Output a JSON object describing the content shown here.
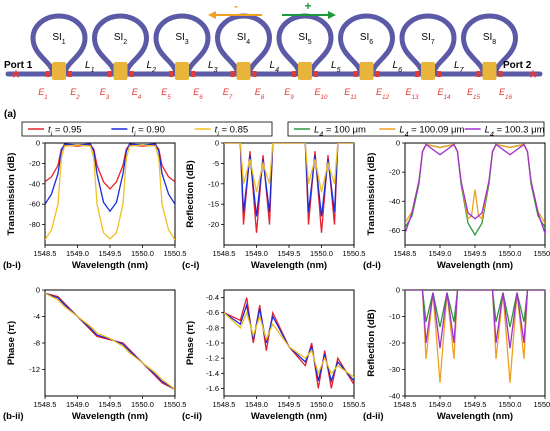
{
  "figure": {
    "panel_labels": {
      "a": "(a)",
      "bi": "(b-i)",
      "bii": "(b-ii)",
      "ci": "(c-i)",
      "cii": "(c-ii)",
      "di": "(d-i)",
      "dii": "(d-ii)"
    },
    "colors": {
      "waveguide": "#5a5aa6",
      "coupler": "#e8b43a",
      "port_marker": "#e53935",
      "arrow_minus": "#f0a020",
      "arrow_plus": "#1a9a3a",
      "t095": "#e8202a",
      "t090": "#1a2bd8",
      "t085": "#f0c020",
      "L100": "#2e9a3a",
      "L10009": "#f0a020",
      "L1003": "#a030d0"
    }
  },
  "schematic": {
    "rings": [
      "SI1",
      "SI2",
      "SI3",
      "SI4",
      "SI5",
      "SI6",
      "SI7",
      "SI8"
    ],
    "ring_base": "SI",
    "ring_subs": [
      "1",
      "2",
      "3",
      "4",
      "5",
      "6",
      "7",
      "8"
    ],
    "L_base": "L",
    "L_subs": [
      "1",
      "2",
      "3",
      "4",
      "5",
      "6",
      "7"
    ],
    "E_base": "E",
    "E_subs": [
      "1",
      "2",
      "3",
      "4",
      "5",
      "6",
      "7",
      "8",
      "9",
      "10",
      "11",
      "12",
      "13",
      "14",
      "15",
      "16"
    ],
    "port1": "Port 1",
    "port2": "Port 2",
    "minus": "-",
    "plus": "+"
  },
  "legends": {
    "left": [
      {
        "var": "t",
        "sub": "i",
        "value": " = 0.95",
        "color": "#e8202a"
      },
      {
        "var": "t",
        "sub": "i",
        "value": " = 0.90",
        "color": "#1a2bd8"
      },
      {
        "var": "t",
        "sub": "i",
        "value": " = 0.85",
        "color": "#f0c020"
      }
    ],
    "right": [
      {
        "var": "L",
        "sub": "4",
        "value": " = 100 μm",
        "color": "#2e9a3a"
      },
      {
        "var": "L",
        "sub": "4",
        "value": " = 100.09 μm",
        "color": "#f0a020"
      },
      {
        "var": "L",
        "sub": "4",
        "value": " = 100.3 μm",
        "color": "#a030d0"
      }
    ]
  },
  "chart_data": [
    {
      "id": "b-i",
      "type": "line",
      "ylabel": "Transmission (dB)",
      "xlabel": "Wavelength (nm)",
      "xlim": [
        1548.5,
        1550.5
      ],
      "ylim": [
        -100,
        0
      ],
      "xticks": [
        "1548.5",
        "1549.0",
        "1549.5",
        "1550.0",
        "1550.5"
      ],
      "yticks": [
        "0",
        "-20",
        "-40",
        "-60",
        "-80"
      ],
      "series": [
        {
          "name": "t_i = 0.95",
          "color": "#e8202a",
          "x": [
            1548.5,
            1548.6,
            1548.7,
            1548.75,
            1548.8,
            1549.0,
            1549.2,
            1549.25,
            1549.3,
            1549.4,
            1549.5,
            1549.6,
            1549.7,
            1549.75,
            1549.8,
            1550.0,
            1550.2,
            1550.25,
            1550.3,
            1550.4,
            1550.5
          ],
          "y": [
            -38,
            -33,
            -22,
            -6,
            -2,
            -3,
            -2,
            -6,
            -22,
            -38,
            -45,
            -38,
            -22,
            -6,
            -2,
            -3,
            -2,
            -6,
            -22,
            -33,
            -38
          ]
        },
        {
          "name": "t_i = 0.90",
          "color": "#1a2bd8",
          "x": [
            1548.5,
            1548.6,
            1548.7,
            1548.75,
            1548.8,
            1549.0,
            1549.2,
            1549.25,
            1549.3,
            1549.4,
            1549.5,
            1549.6,
            1549.7,
            1549.75,
            1549.8,
            1550.0,
            1550.2,
            1550.25,
            1550.3,
            1550.4,
            1550.5
          ],
          "y": [
            -60,
            -50,
            -30,
            -8,
            -1,
            -2,
            -1,
            -8,
            -30,
            -58,
            -67,
            -58,
            -30,
            -8,
            -1,
            -2,
            -1,
            -8,
            -30,
            -50,
            -60
          ]
        },
        {
          "name": "t_i = 0.85",
          "color": "#f0c020",
          "x": [
            1548.5,
            1548.6,
            1548.7,
            1548.75,
            1548.8,
            1549.0,
            1549.2,
            1549.25,
            1549.3,
            1549.4,
            1549.5,
            1549.6,
            1549.7,
            1549.75,
            1549.8,
            1550.0,
            1550.2,
            1550.25,
            1550.3,
            1550.4,
            1550.5
          ],
          "y": [
            -95,
            -85,
            -60,
            -15,
            -3,
            -2,
            -3,
            -15,
            -60,
            -88,
            -94,
            -88,
            -60,
            -15,
            -3,
            -2,
            -3,
            -15,
            -60,
            -85,
            -95
          ]
        }
      ]
    },
    {
      "id": "c-i",
      "type": "line",
      "ylabel": "Reflection (dB)",
      "xlabel": "Wavelength (nm)",
      "xlim": [
        1548.5,
        1550.5
      ],
      "ylim": [
        -25,
        0
      ],
      "xticks": [
        "1548.5",
        "1549.0",
        "1549.5",
        "1550.0",
        "1550.5"
      ],
      "yticks": [
        "0",
        "-5",
        "-10",
        "-15",
        "-20"
      ],
      "series": [
        {
          "name": "t_i = 0.95",
          "color": "#e8202a",
          "x": [
            1548.5,
            1548.75,
            1548.8,
            1548.9,
            1549.0,
            1549.1,
            1549.2,
            1549.25,
            1549.5,
            1549.75,
            1549.8,
            1549.9,
            1550.0,
            1550.1,
            1550.2,
            1550.25,
            1550.5
          ],
          "y": [
            0,
            0,
            -20,
            -2,
            -22,
            -3,
            -20,
            0,
            0,
            0,
            -20,
            -2,
            -22,
            -3,
            -20,
            0,
            0
          ]
        },
        {
          "name": "t_i = 0.90",
          "color": "#1a2bd8",
          "x": [
            1548.5,
            1548.75,
            1548.8,
            1548.9,
            1549.0,
            1549.1,
            1549.2,
            1549.25,
            1549.5,
            1549.75,
            1549.8,
            1549.9,
            1550.0,
            1550.1,
            1550.2,
            1550.25,
            1550.5
          ],
          "y": [
            0,
            0,
            -17,
            -3,
            -18,
            -4,
            -17,
            0,
            0,
            0,
            -17,
            -3,
            -18,
            -4,
            -17,
            0,
            0
          ]
        },
        {
          "name": "t_i = 0.85",
          "color": "#f0c020",
          "x": [
            1548.5,
            1548.75,
            1548.8,
            1548.9,
            1549.0,
            1549.1,
            1549.2,
            1549.25,
            1549.5,
            1549.75,
            1549.8,
            1549.9,
            1550.0,
            1550.1,
            1550.2,
            1550.25,
            1550.5
          ],
          "y": [
            0,
            0,
            -10,
            -4,
            -12,
            -5,
            -10,
            0,
            0,
            0,
            -10,
            -4,
            -12,
            -5,
            -10,
            0,
            0
          ]
        }
      ]
    },
    {
      "id": "d-i",
      "type": "line",
      "ylabel": "Transmission (dB)",
      "xlabel": "Wavelength (nm)",
      "xlim": [
        1548.5,
        1550.5
      ],
      "ylim": [
        -70,
        0
      ],
      "xticks": [
        "1548.5",
        "1549.0",
        "1549.5",
        "1550.0",
        "1550.5"
      ],
      "yticks": [
        "0",
        "-20",
        "-40",
        "-60"
      ],
      "series": [
        {
          "name": "L_4 = 100 μm",
          "color": "#2e9a3a",
          "x": [
            1548.5,
            1548.6,
            1548.7,
            1548.75,
            1548.8,
            1549.0,
            1549.2,
            1549.25,
            1549.3,
            1549.4,
            1549.5,
            1549.6,
            1549.7,
            1549.75,
            1549.8,
            1550.0,
            1550.2,
            1550.25,
            1550.3,
            1550.4,
            1550.5
          ],
          "y": [
            -58,
            -50,
            -28,
            -6,
            -1,
            -3,
            -1,
            -6,
            -28,
            -55,
            -63,
            -55,
            -28,
            -6,
            -1,
            -3,
            -1,
            -6,
            -28,
            -50,
            -58
          ]
        },
        {
          "name": "L_4 = 100.09 μm",
          "color": "#f0a020",
          "x": [
            1548.5,
            1548.6,
            1548.7,
            1548.75,
            1548.8,
            1549.0,
            1549.2,
            1549.25,
            1549.3,
            1549.4,
            1549.45,
            1549.5,
            1549.55,
            1549.6,
            1549.7,
            1549.75,
            1549.8,
            1550.0,
            1550.2,
            1550.25,
            1550.3,
            1550.4,
            1550.5
          ],
          "y": [
            -55,
            -47,
            -26,
            -6,
            -1,
            -3,
            -1,
            -6,
            -26,
            -52,
            -50,
            -32,
            -50,
            -52,
            -26,
            -6,
            -1,
            -3,
            -1,
            -6,
            -26,
            -47,
            -55
          ]
        },
        {
          "name": "L_4 = 100.3 μm",
          "color": "#a030d0",
          "x": [
            1548.5,
            1548.6,
            1548.7,
            1548.75,
            1548.8,
            1549.0,
            1549.2,
            1549.25,
            1549.3,
            1549.4,
            1549.5,
            1549.6,
            1549.7,
            1549.75,
            1549.8,
            1550.0,
            1550.2,
            1550.25,
            1550.3,
            1550.4,
            1550.5
          ],
          "y": [
            -62,
            -48,
            -26,
            -6,
            -1,
            -8,
            -1,
            -6,
            -26,
            -48,
            -52,
            -48,
            -26,
            -6,
            -1,
            -8,
            -1,
            -6,
            -26,
            -48,
            -62
          ]
        }
      ]
    },
    {
      "id": "b-ii",
      "type": "line",
      "ylabel": "Phase (π)",
      "xlabel": "Wavelength (nm)",
      "xlim": [
        1548.5,
        1550.5
      ],
      "ylim": [
        -16,
        0
      ],
      "xticks": [
        "1548.5",
        "1549.0",
        "1549.5",
        "1550.0",
        "1550.5"
      ],
      "yticks": [
        "0",
        "-4",
        "-8",
        "-12"
      ],
      "series": [
        {
          "name": "t_i = 0.95",
          "color": "#e8202a",
          "x": [
            1548.5,
            1548.7,
            1548.8,
            1549.0,
            1549.2,
            1549.3,
            1549.5,
            1549.7,
            1549.8,
            1550.0,
            1550.2,
            1550.3,
            1550.5
          ],
          "y": [
            -0.5,
            -1,
            -2,
            -4,
            -6,
            -7,
            -7.5,
            -8,
            -9,
            -11,
            -13,
            -14,
            -15
          ]
        },
        {
          "name": "t_i = 0.90",
          "color": "#1a2bd8",
          "x": [
            1548.5,
            1548.7,
            1548.8,
            1549.0,
            1549.2,
            1549.3,
            1549.5,
            1549.7,
            1549.8,
            1550.0,
            1550.2,
            1550.3,
            1550.5
          ],
          "y": [
            -0.5,
            -1.2,
            -2.2,
            -4,
            -5.8,
            -6.8,
            -7.4,
            -8.2,
            -9.2,
            -11,
            -12.8,
            -13.8,
            -15
          ]
        },
        {
          "name": "t_i = 0.85",
          "color": "#f0c020",
          "x": [
            1548.5,
            1548.7,
            1548.8,
            1549.0,
            1549.2,
            1549.3,
            1549.5,
            1549.7,
            1549.8,
            1550.0,
            1550.2,
            1550.3,
            1550.5
          ],
          "y": [
            -0.5,
            -1.5,
            -2.5,
            -4,
            -5.5,
            -6.5,
            -7.3,
            -8.5,
            -9.5,
            -11,
            -12.5,
            -13.5,
            -15
          ]
        }
      ]
    },
    {
      "id": "c-ii",
      "type": "line",
      "ylabel": "Phase (π)",
      "xlabel": "Wavelength (nm)",
      "xlim": [
        1548.5,
        1550.5
      ],
      "ylim": [
        -1.7,
        -0.3
      ],
      "xticks": [
        "1548.5",
        "1549.0",
        "1549.5",
        "1550.0",
        "1550.5"
      ],
      "yticks": [
        "-0.4",
        "-0.6",
        "-0.8",
        "-1.0",
        "-1.2",
        "-1.4",
        "-1.6"
      ],
      "series": [
        {
          "name": "t_i = 0.95",
          "color": "#e8202a",
          "x": [
            1548.5,
            1548.75,
            1548.85,
            1548.95,
            1549.05,
            1549.15,
            1549.25,
            1549.5,
            1549.75,
            1549.85,
            1549.95,
            1550.05,
            1550.15,
            1550.25,
            1550.5
          ],
          "y": [
            -0.6,
            -0.7,
            -0.4,
            -1.0,
            -0.5,
            -1.1,
            -0.6,
            -1.05,
            -1.3,
            -1.0,
            -1.6,
            -1.1,
            -1.6,
            -1.2,
            -1.55
          ]
        },
        {
          "name": "t_i = 0.90",
          "color": "#1a2bd8",
          "x": [
            1548.5,
            1548.75,
            1548.85,
            1548.95,
            1549.05,
            1549.15,
            1549.25,
            1549.5,
            1549.75,
            1549.85,
            1549.95,
            1550.05,
            1550.15,
            1550.25,
            1550.5
          ],
          "y": [
            -0.6,
            -0.75,
            -0.5,
            -0.95,
            -0.55,
            -1.0,
            -0.65,
            -1.05,
            -1.25,
            -1.05,
            -1.5,
            -1.15,
            -1.5,
            -1.25,
            -1.5
          ]
        },
        {
          "name": "t_i = 0.85",
          "color": "#f0c020",
          "x": [
            1548.5,
            1548.75,
            1548.85,
            1548.95,
            1549.05,
            1549.15,
            1549.25,
            1549.5,
            1549.75,
            1549.85,
            1549.95,
            1550.05,
            1550.15,
            1550.25,
            1550.5
          ],
          "y": [
            -0.6,
            -0.8,
            -0.6,
            -0.9,
            -0.65,
            -0.95,
            -0.75,
            -1.05,
            -1.2,
            -1.1,
            -1.4,
            -1.2,
            -1.4,
            -1.3,
            -1.45
          ]
        }
      ]
    },
    {
      "id": "d-ii",
      "type": "line",
      "ylabel": "Reflection (dB)",
      "xlabel": "Wavelength (nm)",
      "xlim": [
        1548.5,
        1550.5
      ],
      "ylim": [
        -40,
        0
      ],
      "xticks": [
        "1548.5",
        "1549.0",
        "1549.5",
        "1550.0",
        "1550.5"
      ],
      "yticks": [
        "0",
        "-10",
        "-20",
        "-30",
        "-40"
      ],
      "series": [
        {
          "name": "L_4 = 100 μm",
          "color": "#2e9a3a",
          "x": [
            1548.5,
            1548.75,
            1548.8,
            1548.9,
            1549.0,
            1549.1,
            1549.2,
            1549.25,
            1549.5,
            1549.75,
            1549.8,
            1549.9,
            1550.0,
            1550.1,
            1550.2,
            1550.25,
            1550.5
          ],
          "y": [
            0,
            0,
            -12,
            -1,
            -14,
            -1,
            -12,
            0,
            0,
            0,
            -12,
            -1,
            -14,
            -1,
            -12,
            0,
            0
          ]
        },
        {
          "name": "L_4 = 100.09 μm",
          "color": "#f0a020",
          "x": [
            1548.5,
            1548.75,
            1548.8,
            1548.9,
            1549.0,
            1549.1,
            1549.2,
            1549.25,
            1549.5,
            1549.75,
            1549.8,
            1549.9,
            1550.0,
            1550.1,
            1550.2,
            1550.25,
            1550.5
          ],
          "y": [
            0,
            0,
            -26,
            -1,
            -35,
            -1,
            -26,
            0,
            0,
            0,
            -26,
            -1,
            -35,
            -1,
            -26,
            0,
            0
          ]
        },
        {
          "name": "L_4 = 100.3 μm",
          "color": "#a030d0",
          "x": [
            1548.5,
            1548.75,
            1548.8,
            1548.9,
            1549.0,
            1549.1,
            1549.2,
            1549.25,
            1549.5,
            1549.75,
            1549.8,
            1549.9,
            1550.0,
            1550.1,
            1550.2,
            1550.25,
            1550.5
          ],
          "y": [
            0,
            0,
            -20,
            -1,
            -22,
            -1,
            -20,
            0,
            0,
            0,
            -20,
            -1,
            -22,
            -1,
            -20,
            0,
            0
          ]
        }
      ]
    }
  ]
}
